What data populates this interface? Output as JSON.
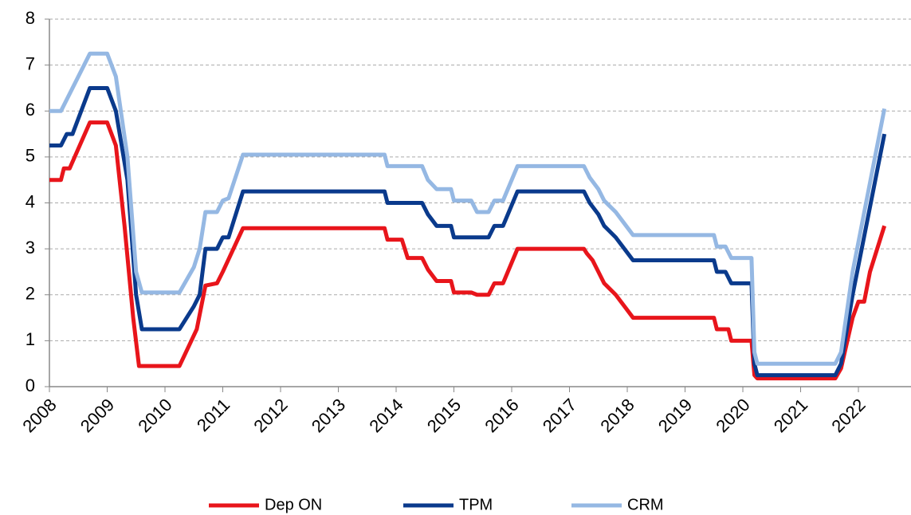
{
  "chart_data": {
    "type": "line",
    "xlim": [
      2008,
      2022.91
    ],
    "xticks": [
      2008,
      2009,
      2010,
      2011,
      2012,
      2013,
      2014,
      2015,
      2016,
      2017,
      2018,
      2019,
      2020,
      2021,
      2022
    ],
    "ylim": [
      0,
      8
    ],
    "yticks": [
      0,
      1,
      2,
      3,
      4,
      5,
      6,
      7,
      8
    ],
    "grid": true,
    "legend": "bottom",
    "series": [
      {
        "name": "Dep ON",
        "color": "#e8151b",
        "x": [
          2008.0,
          2008.2,
          2008.25,
          2008.35,
          2008.7,
          2009.0,
          2009.15,
          2009.3,
          2009.45,
          2009.55,
          2010.25,
          2010.4,
          2010.55,
          2010.7,
          2010.9,
          2011.0,
          2011.35,
          2013.8,
          2013.85,
          2014.1,
          2014.2,
          2014.45,
          2014.55,
          2014.7,
          2014.95,
          2015.0,
          2015.3,
          2015.4,
          2015.6,
          2015.7,
          2015.85,
          2016.1,
          2017.25,
          2017.3,
          2017.4,
          2017.5,
          2017.6,
          2017.8,
          2017.95,
          2018.1,
          2019.5,
          2019.55,
          2019.75,
          2019.8,
          2020.15,
          2020.2,
          2020.25,
          2021.6,
          2021.7,
          2021.9,
          2022.0,
          2022.1,
          2022.2,
          2022.45
        ],
        "values": [
          4.5,
          4.5,
          4.75,
          4.75,
          5.75,
          5.75,
          5.25,
          3.5,
          1.5,
          0.45,
          0.45,
          0.85,
          1.25,
          2.2,
          2.25,
          2.5,
          3.45,
          3.45,
          3.2,
          3.2,
          2.8,
          2.8,
          2.55,
          2.3,
          2.3,
          2.05,
          2.05,
          2.0,
          2.0,
          2.25,
          2.25,
          3.0,
          3.0,
          2.9,
          2.75,
          2.5,
          2.25,
          2.0,
          1.75,
          1.5,
          1.5,
          1.25,
          1.25,
          1.0,
          1.0,
          0.25,
          0.18,
          0.18,
          0.4,
          1.5,
          1.85,
          1.85,
          2.5,
          3.5
        ]
      },
      {
        "name": "TPM",
        "color": "#0a3a8c",
        "x": [
          2008.0,
          2008.2,
          2008.3,
          2008.4,
          2008.7,
          2009.0,
          2009.15,
          2009.35,
          2009.5,
          2009.6,
          2010.25,
          2010.5,
          2010.6,
          2010.7,
          2010.9,
          2011.0,
          2011.1,
          2011.35,
          2013.8,
          2013.85,
          2014.45,
          2014.55,
          2014.7,
          2014.95,
          2015.0,
          2015.6,
          2015.7,
          2015.85,
          2016.1,
          2017.25,
          2017.35,
          2017.5,
          2017.6,
          2017.8,
          2017.95,
          2018.1,
          2019.5,
          2019.55,
          2019.7,
          2019.8,
          2020.15,
          2020.2,
          2020.25,
          2021.6,
          2021.7,
          2021.9,
          2022.45
        ],
        "values": [
          5.25,
          5.25,
          5.5,
          5.5,
          6.5,
          6.5,
          6.0,
          4.5,
          2.0,
          1.25,
          1.25,
          1.75,
          2.0,
          3.0,
          3.0,
          3.25,
          3.25,
          4.25,
          4.25,
          4.0,
          4.0,
          3.75,
          3.5,
          3.5,
          3.25,
          3.25,
          3.5,
          3.5,
          4.25,
          4.25,
          4.0,
          3.75,
          3.5,
          3.25,
          3.0,
          2.75,
          2.75,
          2.5,
          2.5,
          2.25,
          2.25,
          0.5,
          0.25,
          0.25,
          0.5,
          2.0,
          5.5
        ]
      },
      {
        "name": "CRM",
        "color": "#95b8e3",
        "x": [
          2008.0,
          2008.2,
          2008.3,
          2008.7,
          2009.0,
          2009.15,
          2009.35,
          2009.5,
          2009.6,
          2010.25,
          2010.5,
          2010.6,
          2010.7,
          2010.9,
          2011.0,
          2011.1,
          2011.35,
          2013.8,
          2013.85,
          2014.45,
          2014.55,
          2014.7,
          2014.95,
          2015.0,
          2015.3,
          2015.4,
          2015.6,
          2015.7,
          2015.85,
          2016.1,
          2017.25,
          2017.35,
          2017.5,
          2017.6,
          2017.8,
          2017.95,
          2018.1,
          2019.5,
          2019.55,
          2019.7,
          2019.8,
          2020.15,
          2020.2,
          2020.25,
          2021.6,
          2021.7,
          2021.9,
          2022.45
        ],
        "values": [
          6.0,
          6.0,
          6.25,
          7.25,
          7.25,
          6.75,
          5.0,
          2.5,
          2.05,
          2.05,
          2.6,
          3.0,
          3.8,
          3.8,
          4.05,
          4.1,
          5.05,
          5.05,
          4.8,
          4.8,
          4.5,
          4.3,
          4.3,
          4.05,
          4.05,
          3.8,
          3.8,
          4.05,
          4.05,
          4.8,
          4.8,
          4.55,
          4.3,
          4.05,
          3.8,
          3.55,
          3.3,
          3.3,
          3.05,
          3.05,
          2.8,
          2.8,
          0.75,
          0.5,
          0.5,
          0.75,
          2.5,
          6.05
        ]
      }
    ]
  }
}
